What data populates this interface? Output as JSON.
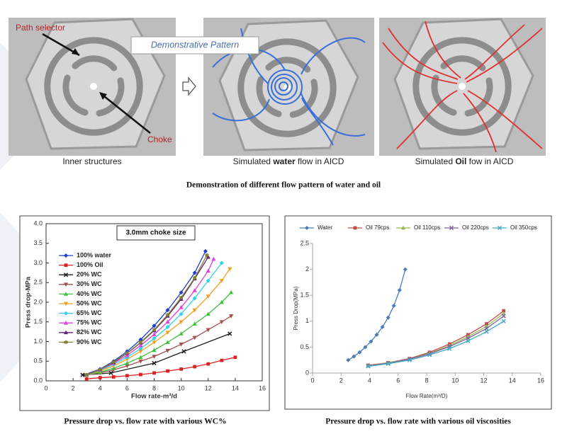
{
  "top_figure": {
    "banner": "Demonstrative Pattern",
    "panels": [
      {
        "labels": [
          "Path selector",
          "Choke"
        ],
        "caption": "Inner structures"
      },
      {
        "caption": [
          "Simulated ",
          "water",
          " flow in AICD"
        ]
      },
      {
        "caption": [
          "Simulated ",
          "Oil",
          " fow in AICD"
        ]
      }
    ],
    "caption": "Demonstration of different flow pattern of water and oil"
  },
  "captions": [
    "Pressure drop vs. flow rate with various WC%",
    "Pressure drop vs. flow rate with various oil viscosities"
  ],
  "chart_data": [
    {
      "type": "line",
      "title": "3.0mm choke size",
      "x_label": "Flow rate-m³/d",
      "y_label": "Press drop-MPa",
      "xlim": [
        0,
        16
      ],
      "xticks": [
        0,
        2,
        4,
        6,
        8,
        10,
        12,
        14,
        16
      ],
      "ylim": [
        0,
        4
      ],
      "yticks": [
        {
          "value": 0,
          "label": "0.0"
        },
        0.5,
        {
          "value": 1,
          "label": "1.0"
        },
        1.5,
        {
          "value": 2,
          "label": "2.0"
        },
        2.5,
        {
          "value": 3,
          "label": "3.0"
        },
        3.5,
        {
          "value": 4,
          "label": "4.0"
        }
      ],
      "legend": "upper left",
      "series": [
        {
          "name": "100% water",
          "color": "#1f3fd0",
          "marker": "diamond",
          "x": [
            2.8,
            4,
            5,
            6,
            7,
            8,
            9,
            10,
            11,
            11.8
          ],
          "values": [
            0.15,
            0.3,
            0.5,
            0.75,
            1.05,
            1.4,
            1.8,
            2.25,
            2.75,
            3.3
          ]
        },
        {
          "name": "100% Oil",
          "color": "#e02020",
          "marker": "square",
          "x": [
            3,
            4,
            5,
            6,
            7,
            8,
            9,
            10,
            11,
            12,
            13,
            14
          ],
          "values": [
            0.05,
            0.08,
            0.1,
            0.13,
            0.16,
            0.2,
            0.25,
            0.3,
            0.36,
            0.43,
            0.52,
            0.6
          ]
        },
        {
          "name": "20% WC",
          "color": "#202020",
          "marker": "x",
          "x": [
            2.7,
            4.8,
            8,
            10.2,
            13.6
          ],
          "values": [
            0.15,
            0.2,
            0.45,
            0.75,
            1.2
          ]
        },
        {
          "name": "30% WC",
          "color": "#a05050",
          "marker": "tri-down",
          "x": [
            3,
            4,
            5,
            6,
            7,
            8,
            9,
            10,
            11,
            12,
            13,
            13.7
          ],
          "values": [
            0.15,
            0.2,
            0.28,
            0.38,
            0.5,
            0.62,
            0.77,
            0.93,
            1.1,
            1.3,
            1.5,
            1.65
          ]
        },
        {
          "name": "40% WC",
          "color": "#40c040",
          "marker": "tri",
          "x": [
            3,
            4,
            5,
            6,
            7,
            8,
            9,
            10,
            11,
            12,
            13,
            13.7
          ],
          "values": [
            0.15,
            0.22,
            0.32,
            0.45,
            0.6,
            0.78,
            0.98,
            1.2,
            1.45,
            1.7,
            2.0,
            2.25
          ]
        },
        {
          "name": "50% WC",
          "color": "#f0a020",
          "marker": "tri-down",
          "x": [
            3,
            4,
            5,
            6,
            7,
            8,
            9,
            10,
            11,
            12,
            13,
            13.6
          ],
          "values": [
            0.15,
            0.25,
            0.38,
            0.55,
            0.75,
            0.98,
            1.23,
            1.5,
            1.8,
            2.15,
            2.55,
            2.85
          ]
        },
        {
          "name": "65% WC",
          "color": "#30d0f0",
          "marker": "diamond",
          "x": [
            3,
            4,
            5,
            6,
            7,
            8,
            9,
            10,
            11,
            12,
            13
          ],
          "values": [
            0.15,
            0.27,
            0.42,
            0.6,
            0.82,
            1.08,
            1.37,
            1.7,
            2.1,
            2.55,
            3.0
          ]
        },
        {
          "name": "75% WC",
          "color": "#e040e0",
          "marker": "tri",
          "x": [
            3,
            4,
            5,
            6,
            7,
            8,
            9,
            10,
            11,
            12,
            12.4
          ],
          "values": [
            0.15,
            0.28,
            0.45,
            0.65,
            0.9,
            1.18,
            1.5,
            1.87,
            2.3,
            2.8,
            3.1
          ]
        },
        {
          "name": "82% WC",
          "color": "#602080",
          "marker": "tri",
          "x": [
            3,
            4,
            5,
            6,
            7,
            8,
            9,
            10,
            11,
            12
          ],
          "values": [
            0.15,
            0.29,
            0.47,
            0.7,
            0.97,
            1.28,
            1.65,
            2.08,
            2.6,
            3.15
          ]
        },
        {
          "name": "90% WC",
          "color": "#808030",
          "marker": "star",
          "x": [
            3,
            4,
            5,
            6,
            7,
            8,
            9,
            10,
            11,
            11.9
          ],
          "values": [
            0.15,
            0.29,
            0.48,
            0.71,
            0.98,
            1.3,
            1.68,
            2.12,
            2.62,
            3.2
          ]
        }
      ]
    },
    {
      "type": "line",
      "x_label": "Flow Rate(m³/D)",
      "y_label": "Press Drop(MPa)",
      "xlim": [
        0,
        16
      ],
      "xticks": [
        0,
        2,
        4,
        6,
        8,
        10,
        12,
        14,
        16
      ],
      "ylim": [
        0,
        2.5
      ],
      "yticks": [
        0,
        0.5,
        1,
        1.5,
        2,
        2.5
      ],
      "legend": "top",
      "series": [
        {
          "name": "Water",
          "color": "#4a7ebb",
          "marker": "diamond",
          "x": [
            2.5,
            2.9,
            3.3,
            3.7,
            4.1,
            4.5,
            4.9,
            5.3,
            5.7,
            6.1,
            6.5
          ],
          "values": [
            0.25,
            0.32,
            0.4,
            0.5,
            0.61,
            0.74,
            0.89,
            1.07,
            1.3,
            1.6,
            2.0
          ]
        },
        {
          "name": "Oil 79cps",
          "color": "#be4b48",
          "marker": "square",
          "x": [
            3.9,
            5.3,
            6.8,
            8.2,
            9.6,
            10.9,
            12.2,
            13.4
          ],
          "values": [
            0.15,
            0.2,
            0.28,
            0.4,
            0.56,
            0.74,
            0.95,
            1.2
          ]
        },
        {
          "name": "Oil 110cps",
          "color": "#98b954",
          "marker": "tri",
          "x": [
            3.9,
            5.3,
            6.8,
            8.2,
            9.6,
            10.9,
            12.2,
            13.4
          ],
          "values": [
            0.14,
            0.2,
            0.27,
            0.38,
            0.53,
            0.7,
            0.9,
            1.15
          ]
        },
        {
          "name": "Oil 220cps",
          "color": "#7d60a0",
          "marker": "x",
          "x": [
            3.9,
            5.3,
            6.8,
            8.2,
            9.6,
            10.9,
            12.2,
            13.4
          ],
          "values": [
            0.14,
            0.19,
            0.27,
            0.37,
            0.51,
            0.67,
            0.86,
            1.1
          ]
        },
        {
          "name": "Oil 350cps",
          "color": "#46aac5",
          "marker": "x",
          "x": [
            3.9,
            5.3,
            6.8,
            8.2,
            9.6,
            10.9,
            12.2,
            13.4
          ],
          "values": [
            0.13,
            0.18,
            0.25,
            0.35,
            0.47,
            0.62,
            0.8,
            1.0
          ]
        }
      ]
    }
  ]
}
